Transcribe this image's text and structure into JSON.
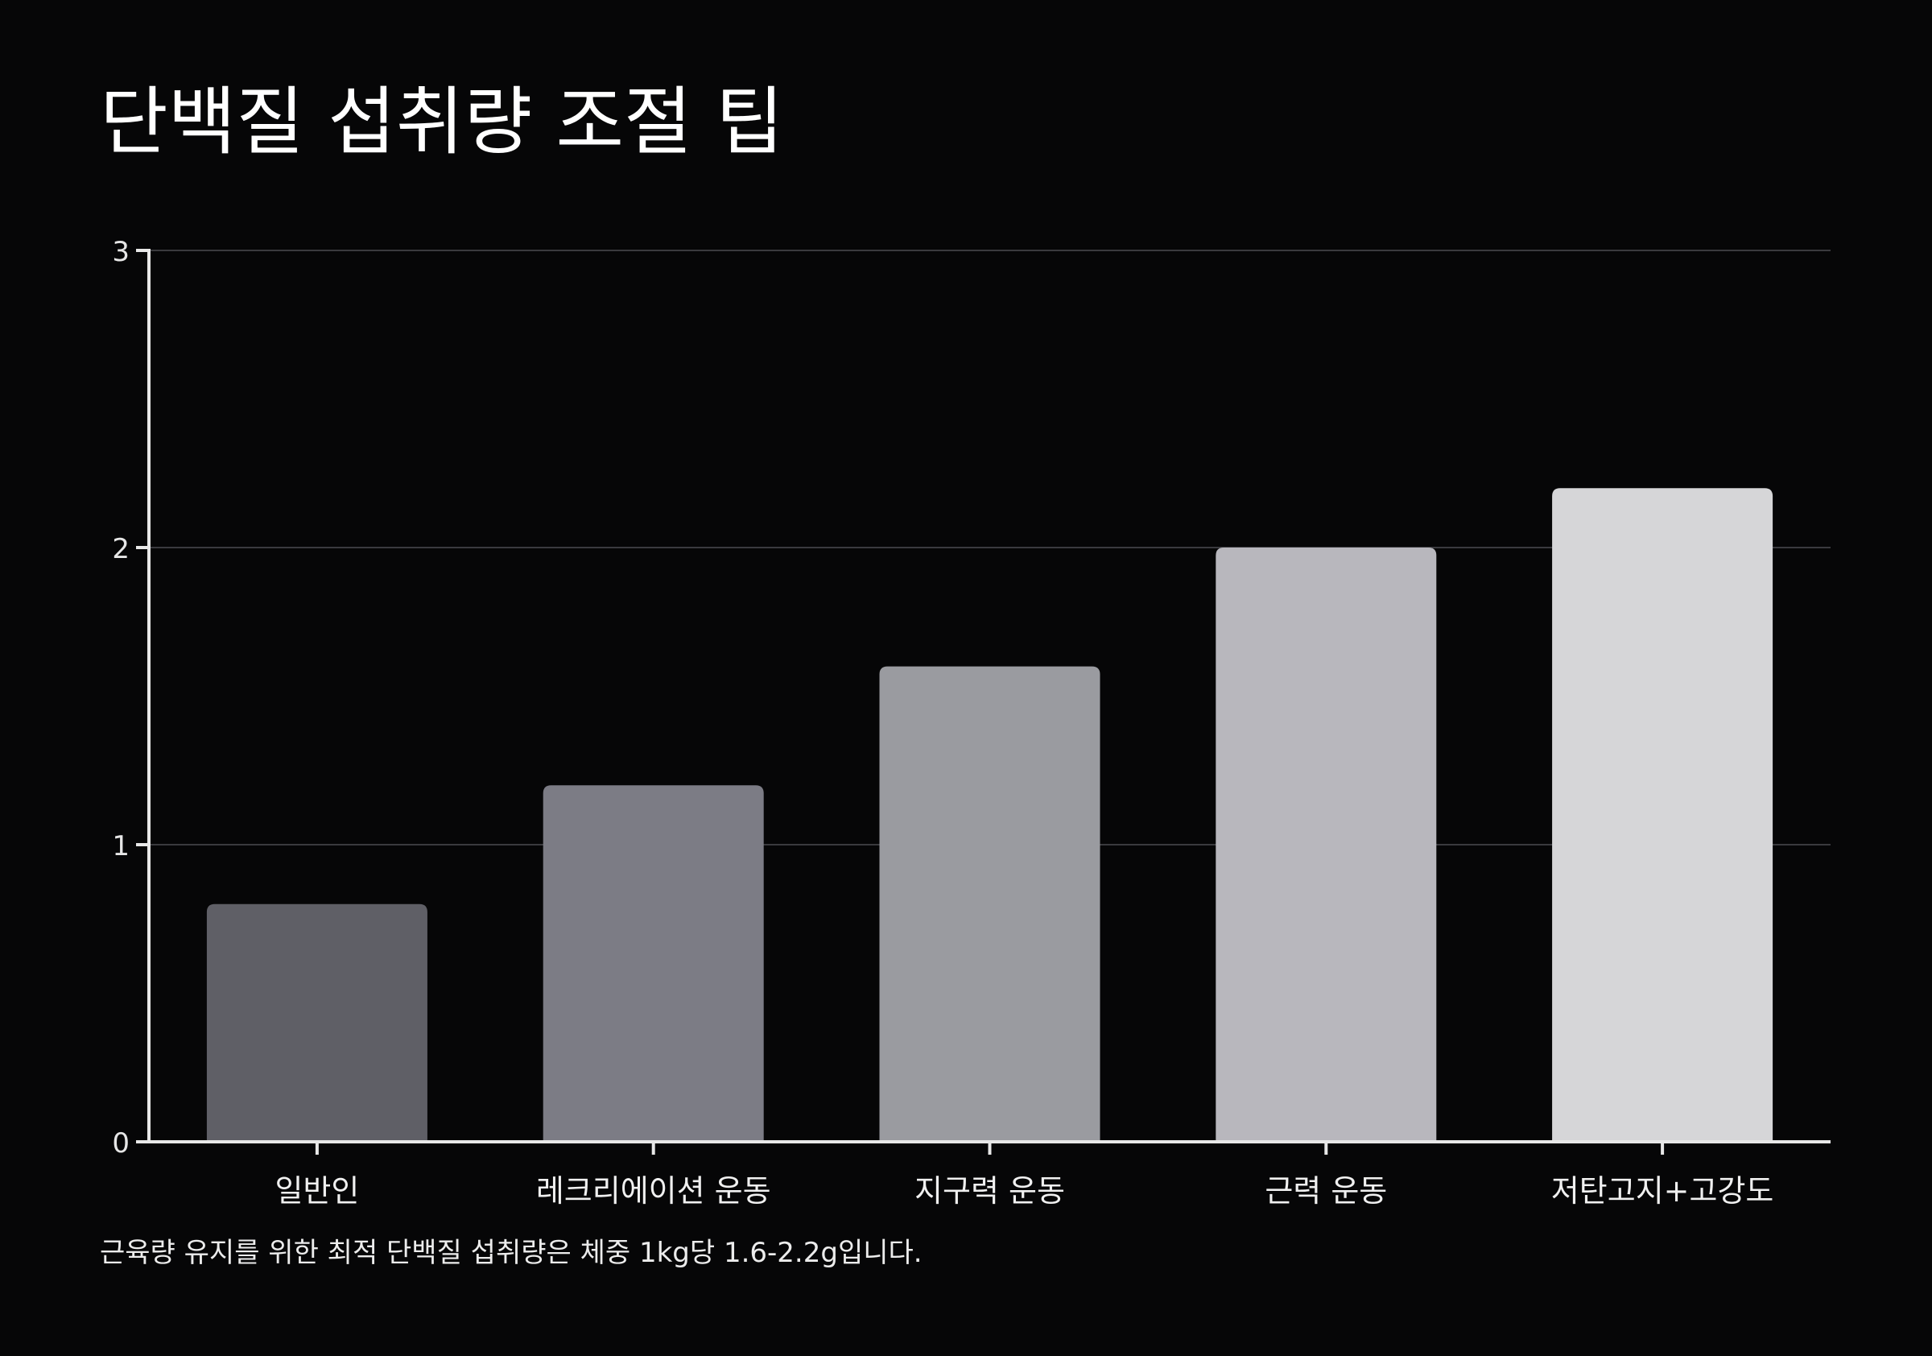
{
  "title": "단백질 섭취량 조절 팁",
  "caption": "근육량 유지를 위한 최적 단백질 섭취량은 체중 1kg당 1.6-2.2g입니다.",
  "chart_data": {
    "type": "bar",
    "categories": [
      "일반인",
      "레크리에이션 운동",
      "지구력 운동",
      "근력 운동",
      "저탄고지+고강도"
    ],
    "values": [
      0.8,
      1.2,
      1.6,
      2.0,
      2.2
    ],
    "bar_colors": [
      "#5f5f66",
      "#7c7c85",
      "#9a9ba0",
      "#b8b7bd",
      "#d6d6d8"
    ],
    "xlabel": "",
    "ylabel": "",
    "ylim": [
      0,
      3
    ],
    "yticks": [
      0,
      1,
      2,
      3
    ],
    "grid": true,
    "legend": "none"
  }
}
